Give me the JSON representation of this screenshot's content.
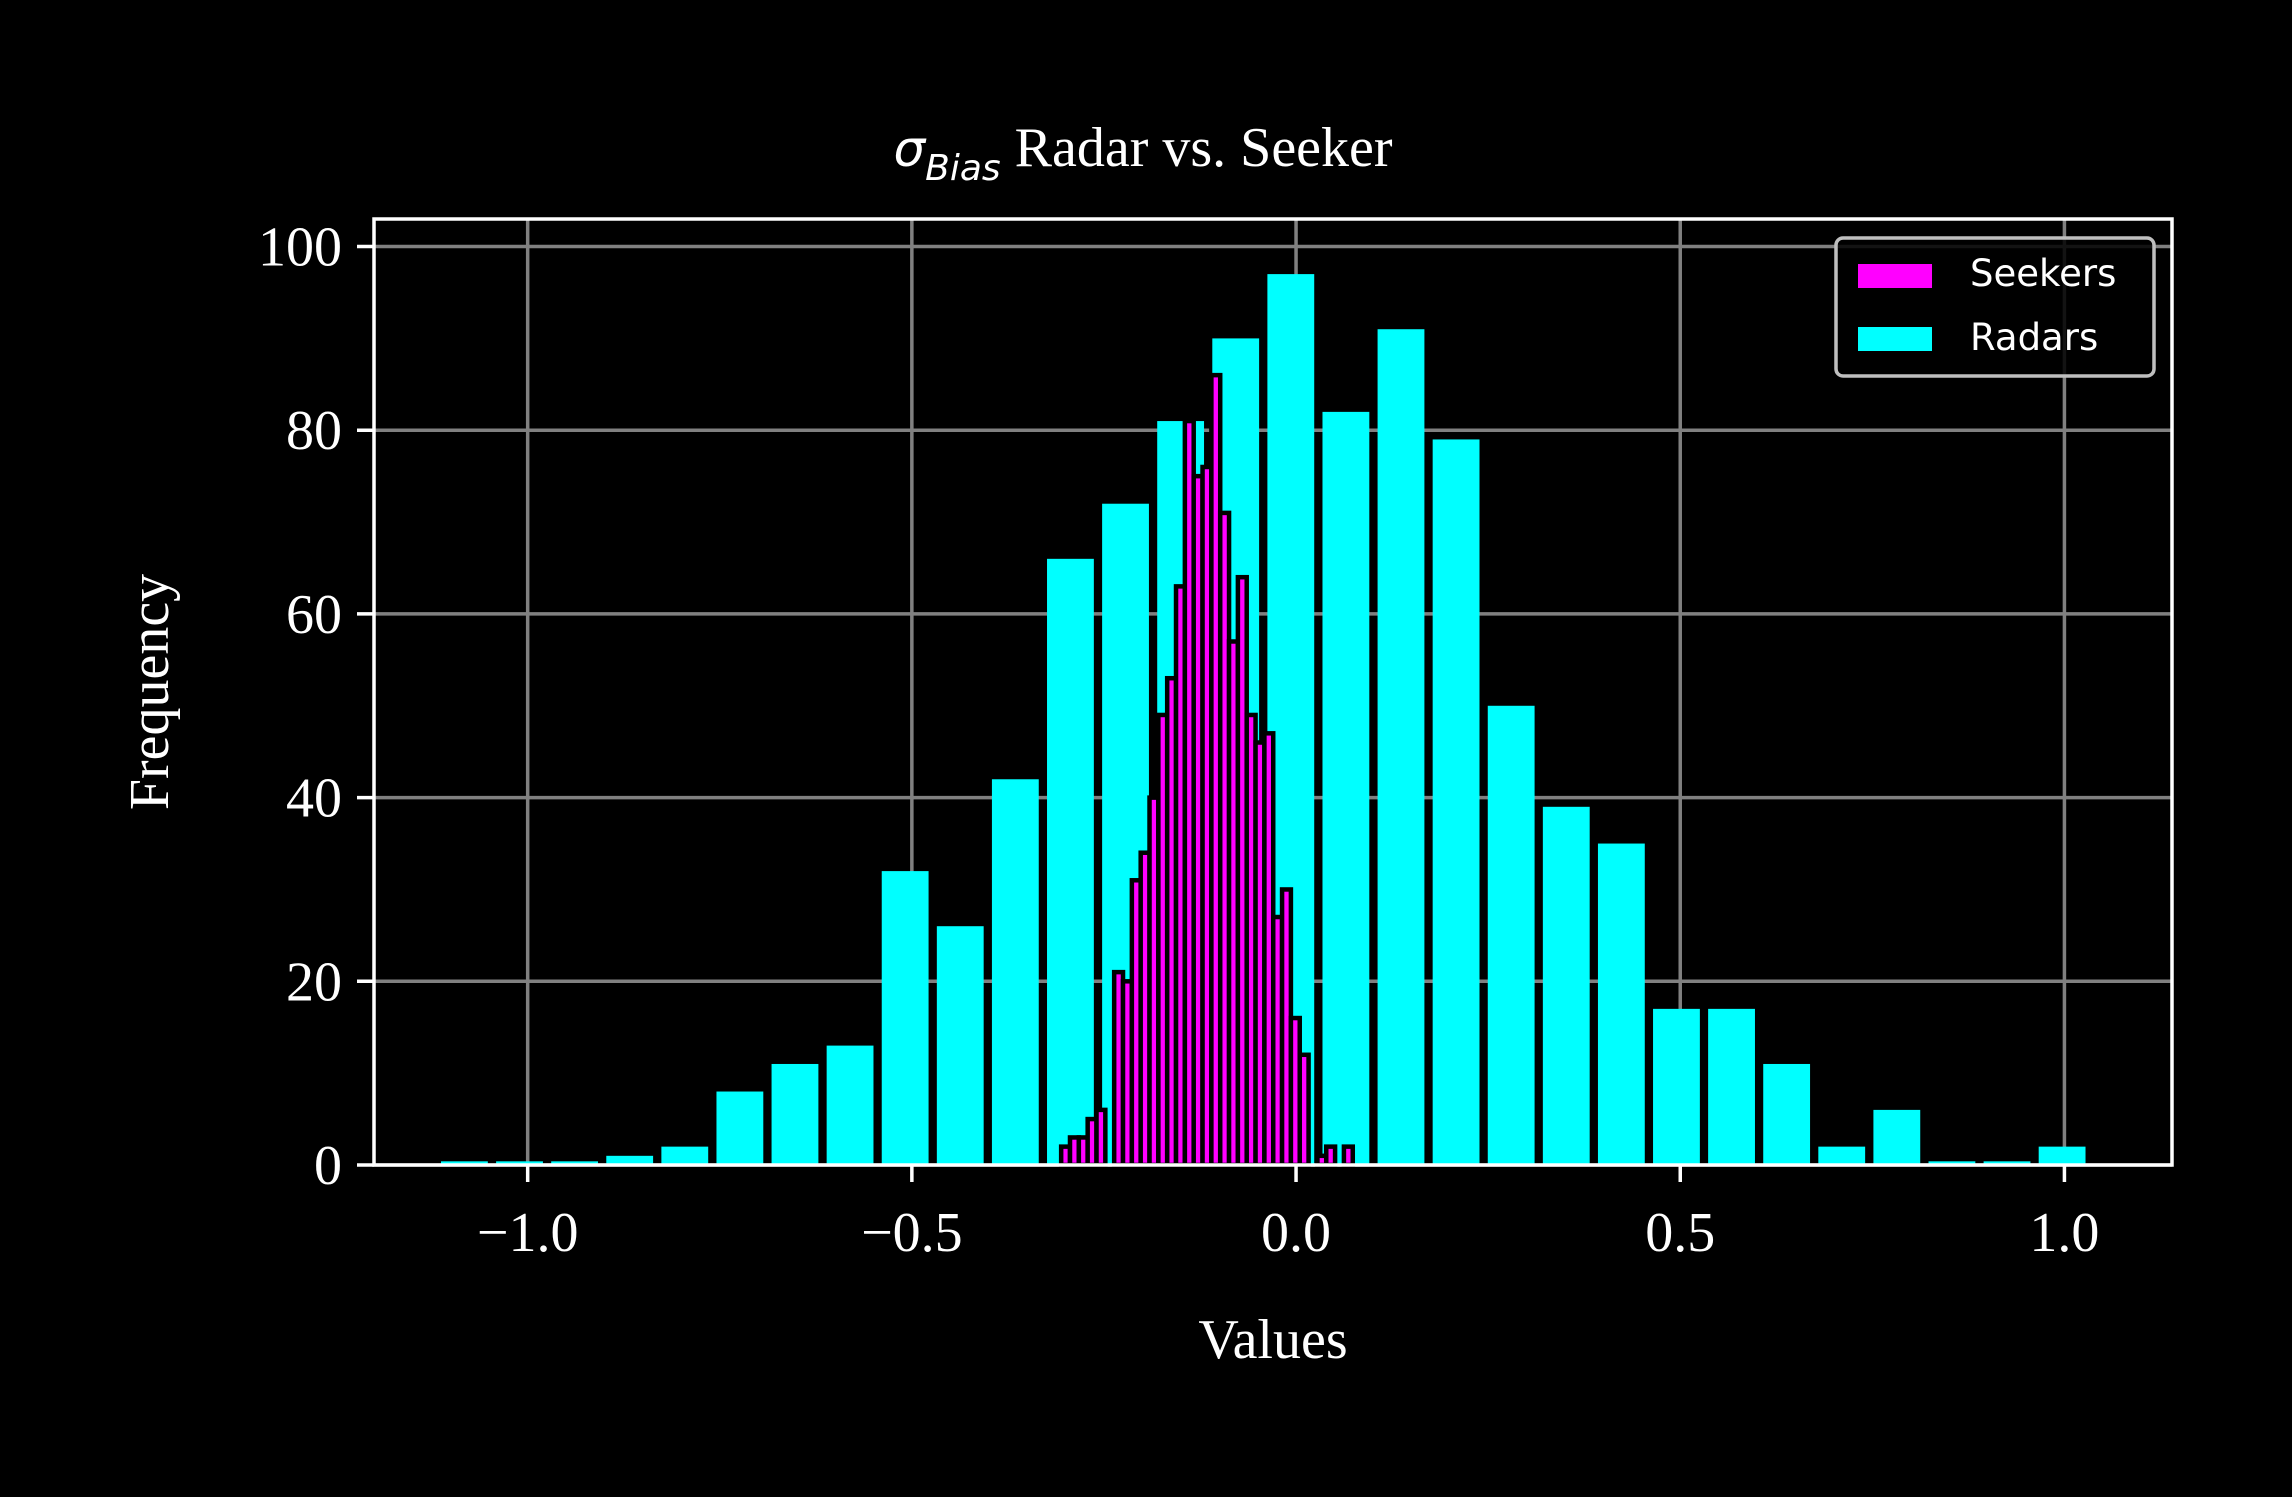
{
  "chart_data": {
    "type": "bar",
    "title": {
      "sigma": "σ",
      "subscript": "Bias",
      "rest": " Radar vs. Seeker"
    },
    "xlabel": "Values",
    "ylabel": "Frequency",
    "xlim": [
      -1.2,
      1.14
    ],
    "ylim": [
      0,
      103
    ],
    "xticks": [
      -1.0,
      -0.5,
      0.0,
      0.5,
      1.0
    ],
    "xtick_labels": [
      "−1.0",
      "−0.5",
      "0.0",
      "0.5",
      "1.0"
    ],
    "yticks": [
      0,
      20,
      40,
      60,
      80,
      100
    ],
    "ytick_labels": [
      "0",
      "20",
      "40",
      "60",
      "80",
      "100"
    ],
    "grid": true,
    "legend": {
      "placement": "top-right",
      "entries": [
        "Seekers",
        "Radars"
      ]
    },
    "colors": {
      "background": "#000000",
      "seekers": "#ff00ff",
      "radars": "#00ffff",
      "grid": "#808080",
      "text": "#ffffff"
    },
    "series": [
      {
        "name": "Radars",
        "bin_start": -1.1128,
        "bin_width": 0.0717,
        "values": [
          0,
          0,
          0,
          1,
          2,
          8,
          11,
          13,
          32,
          26,
          42,
          66,
          72,
          81,
          90,
          97,
          82,
          91,
          79,
          50,
          39,
          35,
          17,
          17,
          11,
          2,
          6,
          0,
          0,
          2
        ]
      },
      {
        "name": "Seekers",
        "bin_start": -0.3057,
        "bin_width": 0.0115,
        "values": [
          2,
          3,
          3,
          5,
          6,
          0,
          21,
          20,
          31,
          34,
          40,
          49,
          53,
          63,
          81,
          75,
          76,
          86,
          71,
          57,
          64,
          49,
          46,
          47,
          27,
          30,
          16,
          12,
          0,
          1,
          2,
          0,
          2
        ]
      }
    ]
  }
}
